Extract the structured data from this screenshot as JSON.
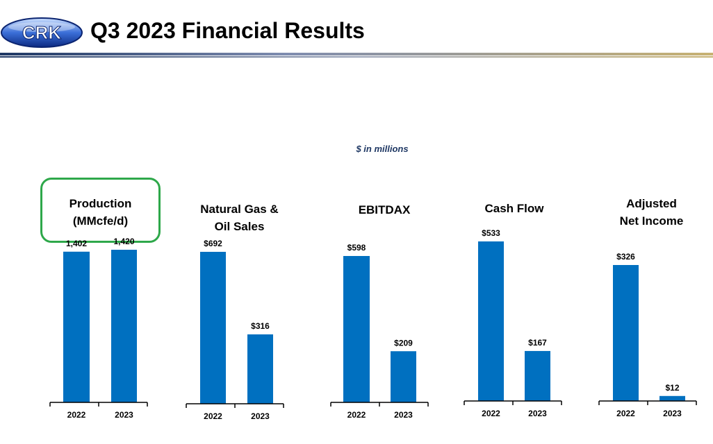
{
  "header": {
    "logo_text": "CRK",
    "title": "Q3 2023 Financial Results"
  },
  "unit_note": "$ in millions",
  "colors": {
    "bar": "#0070c0",
    "highlight": "#2ea84a",
    "unit_note": "#1f3864",
    "rule_gold": "#c8b273",
    "rule_navy": "#1f3864",
    "axis": "#000000"
  },
  "chart_data": [
    {
      "type": "bar",
      "title": "Production\n(MMcfe/d)",
      "highlighted": true,
      "categories": [
        "2022",
        "2023"
      ],
      "values": [
        1402,
        1420
      ],
      "data_labels": [
        "1,402",
        "1,420"
      ]
    },
    {
      "type": "bar",
      "title": "Natural Gas &\nOil Sales",
      "categories": [
        "2022",
        "2023"
      ],
      "values": [
        692,
        316
      ],
      "data_labels": [
        "$692",
        "$316"
      ]
    },
    {
      "type": "bar",
      "title": "EBITDAX",
      "categories": [
        "2022",
        "2023"
      ],
      "values": [
        598,
        209
      ],
      "data_labels": [
        "$598",
        "$209"
      ]
    },
    {
      "type": "bar",
      "title": "Cash Flow",
      "categories": [
        "2022",
        "2023"
      ],
      "values": [
        533,
        167
      ],
      "data_labels": [
        "$533",
        "$167"
      ]
    },
    {
      "type": "bar",
      "title": "Adjusted\nNet Income",
      "categories": [
        "2022",
        "2023"
      ],
      "values": [
        326,
        12
      ],
      "data_labels": [
        "$326",
        "$12"
      ]
    }
  ]
}
